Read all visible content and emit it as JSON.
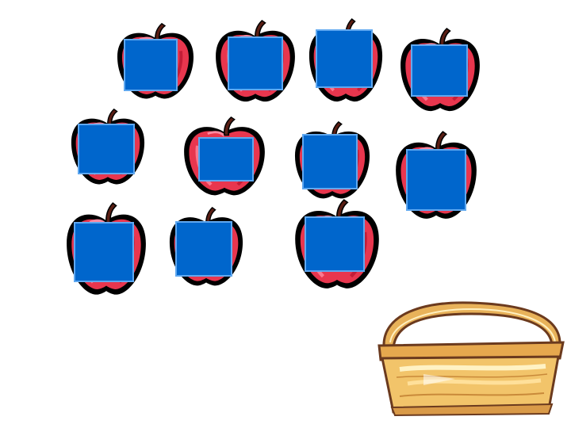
{
  "game": {
    "apple_count": 11,
    "apple_colors": {
      "outline": "#000000",
      "body": "#e8364e",
      "highlight": "#ff8aa0",
      "stem": "#5a1e14",
      "leaf_shadow": "#b3122e"
    },
    "card_colors": {
      "fill": "#0066cc",
      "border": "#5fa8f0"
    },
    "basket": {
      "icon": "wicker-basket-icon",
      "color": "#f2c46a",
      "handle_color": "#e8b25a"
    }
  }
}
